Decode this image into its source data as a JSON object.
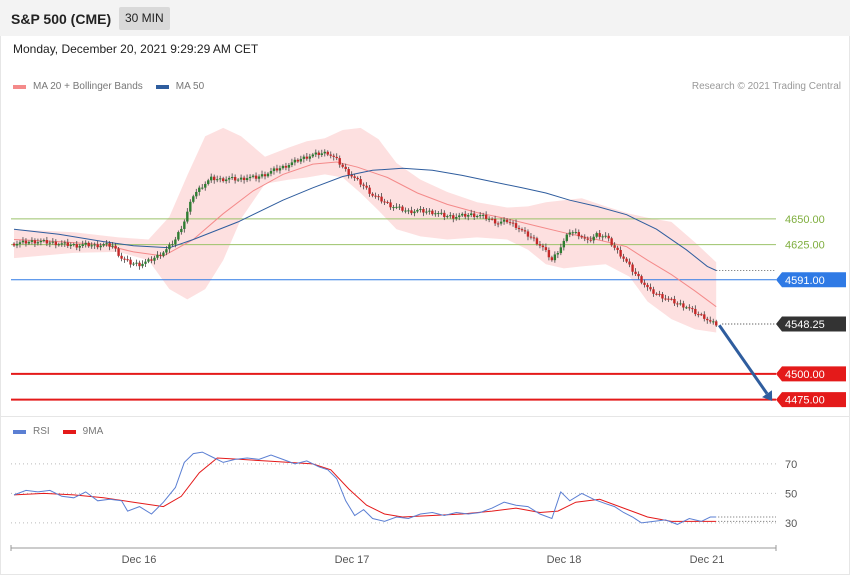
{
  "header": {
    "title": "S&P 500 (CME)",
    "interval": "30 MIN"
  },
  "datetime": "Monday, December 20, 2021 9:29:29 AM CET",
  "legend": [
    {
      "label": "MA 20 + Bollinger Bands",
      "color": "#f48a8a"
    },
    {
      "label": "MA 50",
      "color": "#2f5d9e"
    }
  ],
  "credit": "Research © 2021 Trading Central",
  "rsi_legend": [
    {
      "label": "RSI",
      "color": "#5b7fd3"
    },
    {
      "label": "9MA",
      "color": "#e41a1a"
    }
  ],
  "chart_data": [
    {
      "type": "candlestick",
      "title": "S&P 500 (CME)",
      "x_labels": [
        "Dec 16",
        "Dec 17",
        "Dec 18",
        "Dec 21"
      ],
      "levels": [
        {
          "label": "4650.00",
          "value": 4650.0,
          "kind": "resistance-line",
          "color": "#9bc26a"
        },
        {
          "label": "4625.00",
          "value": 4625.0,
          "kind": "resistance-line",
          "color": "#9bc26a"
        },
        {
          "label": "4591.00",
          "value": 4591.0,
          "kind": "pivot",
          "color": "#2f7ae5"
        },
        {
          "label": "4548.25",
          "value": 4548.25,
          "kind": "last-price",
          "color": "#333333"
        },
        {
          "label": "4500.00",
          "value": 4500.0,
          "kind": "support",
          "color": "#e41a1a"
        },
        {
          "label": "4475.00",
          "value": 4475.0,
          "kind": "support",
          "color": "#e41a1a"
        }
      ],
      "price_path": [
        [
          0,
          4626
        ],
        [
          3,
          4627
        ],
        [
          6,
          4628
        ],
        [
          9,
          4628
        ],
        [
          12,
          4627
        ],
        [
          15,
          4626
        ],
        [
          18,
          4625
        ],
        [
          21,
          4624
        ],
        [
          24,
          4625
        ],
        [
          27,
          4624
        ],
        [
          30,
          4625
        ],
        [
          33,
          4624
        ],
        [
          36,
          4612
        ],
        [
          39,
          4607
        ],
        [
          42,
          4606
        ],
        [
          45,
          4609
        ],
        [
          48,
          4614
        ],
        [
          51,
          4620
        ],
        [
          54,
          4630
        ],
        [
          57,
          4648
        ],
        [
          60,
          4673
        ],
        [
          63,
          4682
        ],
        [
          66,
          4689
        ],
        [
          69,
          4688
        ],
        [
          72,
          4689
        ],
        [
          75,
          4688
        ],
        [
          78,
          4690
        ],
        [
          81,
          4690
        ],
        [
          84,
          4693
        ],
        [
          87,
          4697
        ],
        [
          90,
          4700
        ],
        [
          93,
          4704
        ],
        [
          96,
          4708
        ],
        [
          99,
          4711
        ],
        [
          102,
          4713
        ],
        [
          105,
          4714
        ],
        [
          108,
          4707
        ],
        [
          111,
          4697
        ],
        [
          114,
          4689
        ],
        [
          117,
          4682
        ],
        [
          120,
          4673
        ],
        [
          123,
          4668
        ],
        [
          126,
          4663
        ],
        [
          129,
          4660
        ],
        [
          132,
          4657
        ],
        [
          135,
          4658
        ],
        [
          138,
          4657
        ],
        [
          141,
          4656
        ],
        [
          144,
          4653
        ],
        [
          147,
          4652
        ],
        [
          150,
          4653
        ],
        [
          153,
          4654
        ],
        [
          156,
          4653
        ],
        [
          159,
          4650
        ],
        [
          162,
          4646
        ],
        [
          165,
          4648
        ],
        [
          168,
          4643
        ],
        [
          171,
          4636
        ],
        [
          174,
          4630
        ],
        [
          177,
          4622
        ],
        [
          180,
          4610
        ],
        [
          183,
          4623
        ],
        [
          186,
          4638
        ],
        [
          189,
          4635
        ],
        [
          192,
          4628
        ],
        [
          195,
          4635
        ],
        [
          198,
          4633
        ],
        [
          201,
          4622
        ],
        [
          204,
          4612
        ],
        [
          207,
          4600
        ],
        [
          210,
          4590
        ],
        [
          213,
          4580
        ],
        [
          216,
          4576
        ],
        [
          219,
          4572
        ],
        [
          222,
          4568
        ],
        [
          225,
          4565
        ],
        [
          228,
          4559
        ],
        [
          231,
          4555
        ],
        [
          233,
          4550
        ],
        [
          235,
          4548
        ]
      ],
      "ma20": [
        [
          0,
          4630
        ],
        [
          15,
          4628
        ],
        [
          30,
          4625
        ],
        [
          40,
          4618
        ],
        [
          50,
          4614
        ],
        [
          60,
          4630
        ],
        [
          70,
          4655
        ],
        [
          80,
          4677
        ],
        [
          90,
          4693
        ],
        [
          100,
          4703
        ],
        [
          108,
          4705
        ],
        [
          115,
          4700
        ],
        [
          125,
          4690
        ],
        [
          135,
          4675
        ],
        [
          145,
          4664
        ],
        [
          155,
          4656
        ],
        [
          165,
          4650
        ],
        [
          175,
          4643
        ],
        [
          185,
          4636
        ],
        [
          195,
          4630
        ],
        [
          205,
          4623
        ],
        [
          212,
          4610
        ],
        [
          220,
          4596
        ],
        [
          228,
          4580
        ],
        [
          235,
          4565
        ]
      ],
      "bollinger": {
        "upper": [
          [
            0,
            4640
          ],
          [
            20,
            4637
          ],
          [
            35,
            4632
          ],
          [
            45,
            4630
          ],
          [
            52,
            4652
          ],
          [
            58,
            4692
          ],
          [
            64,
            4730
          ],
          [
            70,
            4738
          ],
          [
            76,
            4730
          ],
          [
            84,
            4710
          ],
          [
            92,
            4719
          ],
          [
            98,
            4725
          ],
          [
            104,
            4728
          ],
          [
            110,
            4736
          ],
          [
            116,
            4738
          ],
          [
            122,
            4727
          ],
          [
            128,
            4704
          ],
          [
            136,
            4688
          ],
          [
            145,
            4676
          ],
          [
            155,
            4666
          ],
          [
            165,
            4661
          ],
          [
            172,
            4662
          ],
          [
            178,
            4666
          ],
          [
            184,
            4668
          ],
          [
            190,
            4670
          ],
          [
            198,
            4662
          ],
          [
            206,
            4655
          ],
          [
            212,
            4651
          ],
          [
            220,
            4647
          ],
          [
            228,
            4627
          ],
          [
            235,
            4608
          ]
        ],
        "lower": [
          [
            0,
            4612
          ],
          [
            20,
            4617
          ],
          [
            35,
            4618
          ],
          [
            45,
            4610
          ],
          [
            52,
            4582
          ],
          [
            58,
            4572
          ],
          [
            64,
            4582
          ],
          [
            70,
            4610
          ],
          [
            76,
            4650
          ],
          [
            84,
            4684
          ],
          [
            92,
            4688
          ],
          [
            98,
            4690
          ],
          [
            104,
            4693
          ],
          [
            110,
            4690
          ],
          [
            116,
            4675
          ],
          [
            122,
            4658
          ],
          [
            128,
            4640
          ],
          [
            136,
            4633
          ],
          [
            145,
            4630
          ],
          [
            155,
            4632
          ],
          [
            165,
            4630
          ],
          [
            172,
            4620
          ],
          [
            178,
            4606
          ],
          [
            184,
            4602
          ],
          [
            190,
            4604
          ],
          [
            198,
            4606
          ],
          [
            206,
            4594
          ],
          [
            212,
            4570
          ],
          [
            220,
            4553
          ],
          [
            228,
            4543
          ],
          [
            235,
            4540
          ]
        ]
      },
      "ma50": [
        [
          0,
          4640
        ],
        [
          15,
          4635
        ],
        [
          30,
          4628
        ],
        [
          40,
          4624
        ],
        [
          52,
          4622
        ],
        [
          60,
          4630
        ],
        [
          75,
          4647
        ],
        [
          90,
          4668
        ],
        [
          100,
          4680
        ],
        [
          110,
          4691
        ],
        [
          120,
          4697
        ],
        [
          130,
          4699
        ],
        [
          140,
          4697
        ],
        [
          150,
          4692
        ],
        [
          160,
          4686
        ],
        [
          170,
          4680
        ],
        [
          178,
          4675
        ],
        [
          186,
          4668
        ],
        [
          195,
          4662
        ],
        [
          205,
          4654
        ],
        [
          215,
          4640
        ],
        [
          225,
          4620
        ],
        [
          232,
          4604
        ],
        [
          235,
          4600
        ]
      ],
      "ylim": [
        4465,
        4765
      ],
      "xlim": [
        0,
        255
      ],
      "forecast_arrow": {
        "from": [
          235,
          4548
        ],
        "to": [
          254,
          4475
        ]
      }
    },
    {
      "type": "line",
      "title": "RSI",
      "series_names": [
        "RSI",
        "9MA"
      ],
      "ytick_values": [
        "70",
        "50",
        "30"
      ],
      "rsi": [
        [
          0,
          49
        ],
        [
          4,
          52
        ],
        [
          8,
          51
        ],
        [
          12,
          52
        ],
        [
          16,
          48
        ],
        [
          20,
          47
        ],
        [
          24,
          51
        ],
        [
          28,
          45
        ],
        [
          32,
          46
        ],
        [
          36,
          45
        ],
        [
          38,
          38
        ],
        [
          42,
          41
        ],
        [
          46,
          36
        ],
        [
          50,
          44
        ],
        [
          54,
          54
        ],
        [
          57,
          71
        ],
        [
          60,
          77
        ],
        [
          63,
          78
        ],
        [
          66,
          75
        ],
        [
          70,
          71
        ],
        [
          74,
          73
        ],
        [
          78,
          74
        ],
        [
          82,
          73
        ],
        [
          86,
          76
        ],
        [
          90,
          73
        ],
        [
          94,
          70
        ],
        [
          98,
          72
        ],
        [
          102,
          68
        ],
        [
          105,
          66
        ],
        [
          108,
          60
        ],
        [
          111,
          45
        ],
        [
          114,
          35
        ],
        [
          117,
          39
        ],
        [
          120,
          33
        ],
        [
          124,
          31
        ],
        [
          128,
          34
        ],
        [
          132,
          33
        ],
        [
          136,
          36
        ],
        [
          140,
          37
        ],
        [
          144,
          35
        ],
        [
          148,
          37
        ],
        [
          152,
          36
        ],
        [
          156,
          37
        ],
        [
          160,
          40
        ],
        [
          164,
          44
        ],
        [
          168,
          42
        ],
        [
          172,
          41
        ],
        [
          176,
          36
        ],
        [
          180,
          33
        ],
        [
          183,
          51
        ],
        [
          186,
          45
        ],
        [
          190,
          50
        ],
        [
          194,
          46
        ],
        [
          198,
          43
        ],
        [
          201,
          41
        ],
        [
          204,
          37
        ],
        [
          207,
          34
        ],
        [
          210,
          30
        ],
        [
          214,
          31
        ],
        [
          218,
          32
        ],
        [
          222,
          29
        ],
        [
          226,
          33
        ],
        [
          230,
          31
        ],
        [
          233,
          34
        ],
        [
          235,
          34
        ]
      ],
      "ma9": [
        [
          0,
          49
        ],
        [
          10,
          50
        ],
        [
          20,
          49
        ],
        [
          30,
          47
        ],
        [
          40,
          44
        ],
        [
          50,
          41
        ],
        [
          56,
          48
        ],
        [
          62,
          64
        ],
        [
          68,
          74
        ],
        [
          76,
          73
        ],
        [
          84,
          72
        ],
        [
          92,
          71
        ],
        [
          100,
          70
        ],
        [
          106,
          66
        ],
        [
          112,
          53
        ],
        [
          118,
          42
        ],
        [
          124,
          36
        ],
        [
          130,
          34
        ],
        [
          140,
          35
        ],
        [
          150,
          36
        ],
        [
          160,
          38
        ],
        [
          168,
          40
        ],
        [
          176,
          37
        ],
        [
          182,
          38
        ],
        [
          188,
          44
        ],
        [
          196,
          46
        ],
        [
          204,
          40
        ],
        [
          212,
          34
        ],
        [
          220,
          31
        ],
        [
          228,
          31
        ],
        [
          235,
          31
        ]
      ],
      "ylim": [
        15,
        95
      ]
    }
  ]
}
